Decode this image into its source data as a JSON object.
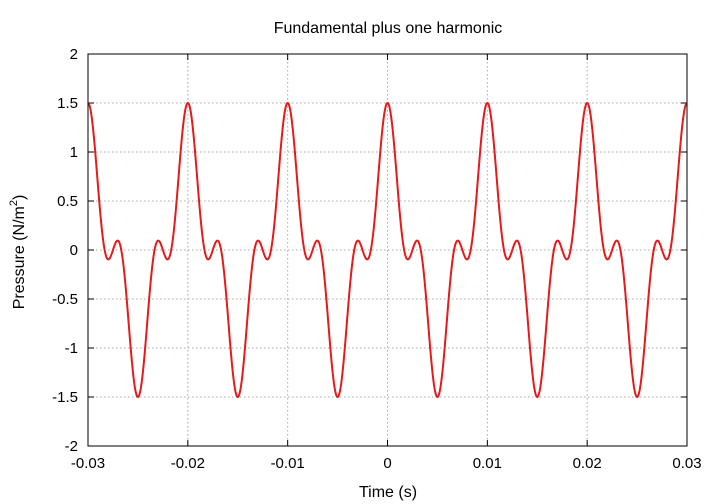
{
  "chart_data": {
    "type": "line",
    "title": "Fundamental plus one harmonic",
    "xlabel": "Time (s)",
    "ylabel_main": "Pressure (N/m",
    "ylabel_sup": "2",
    "ylabel_close": ")",
    "xlim": [
      -0.03,
      0.03
    ],
    "ylim": [
      -2,
      2
    ],
    "x_ticks": [
      -0.03,
      -0.02,
      -0.01,
      0,
      0.01,
      0.02,
      0.03
    ],
    "x_tick_labels": [
      "-0.03",
      "-0.02",
      "-0.01",
      "0",
      "0.01",
      "0.02",
      "0.03"
    ],
    "y_ticks": [
      -2,
      -1.5,
      -1,
      -0.5,
      0,
      0.5,
      1,
      1.5,
      2
    ],
    "y_tick_labels": [
      "-2",
      "-1.5",
      "-1",
      "-0.5",
      "0",
      "0.5",
      "1",
      "1.5",
      "2"
    ],
    "grid": true,
    "series": [
      {
        "color": "#e41a1c",
        "function": "y = cos(2*pi*100*t) + 0.5*cos(2*pi*300*t)",
        "components": [
          {
            "frequency_hz": 100,
            "amplitude": 1.0
          },
          {
            "frequency_hz": 300,
            "amplitude": 0.5
          }
        ],
        "sample_count": 1200
      }
    ]
  }
}
